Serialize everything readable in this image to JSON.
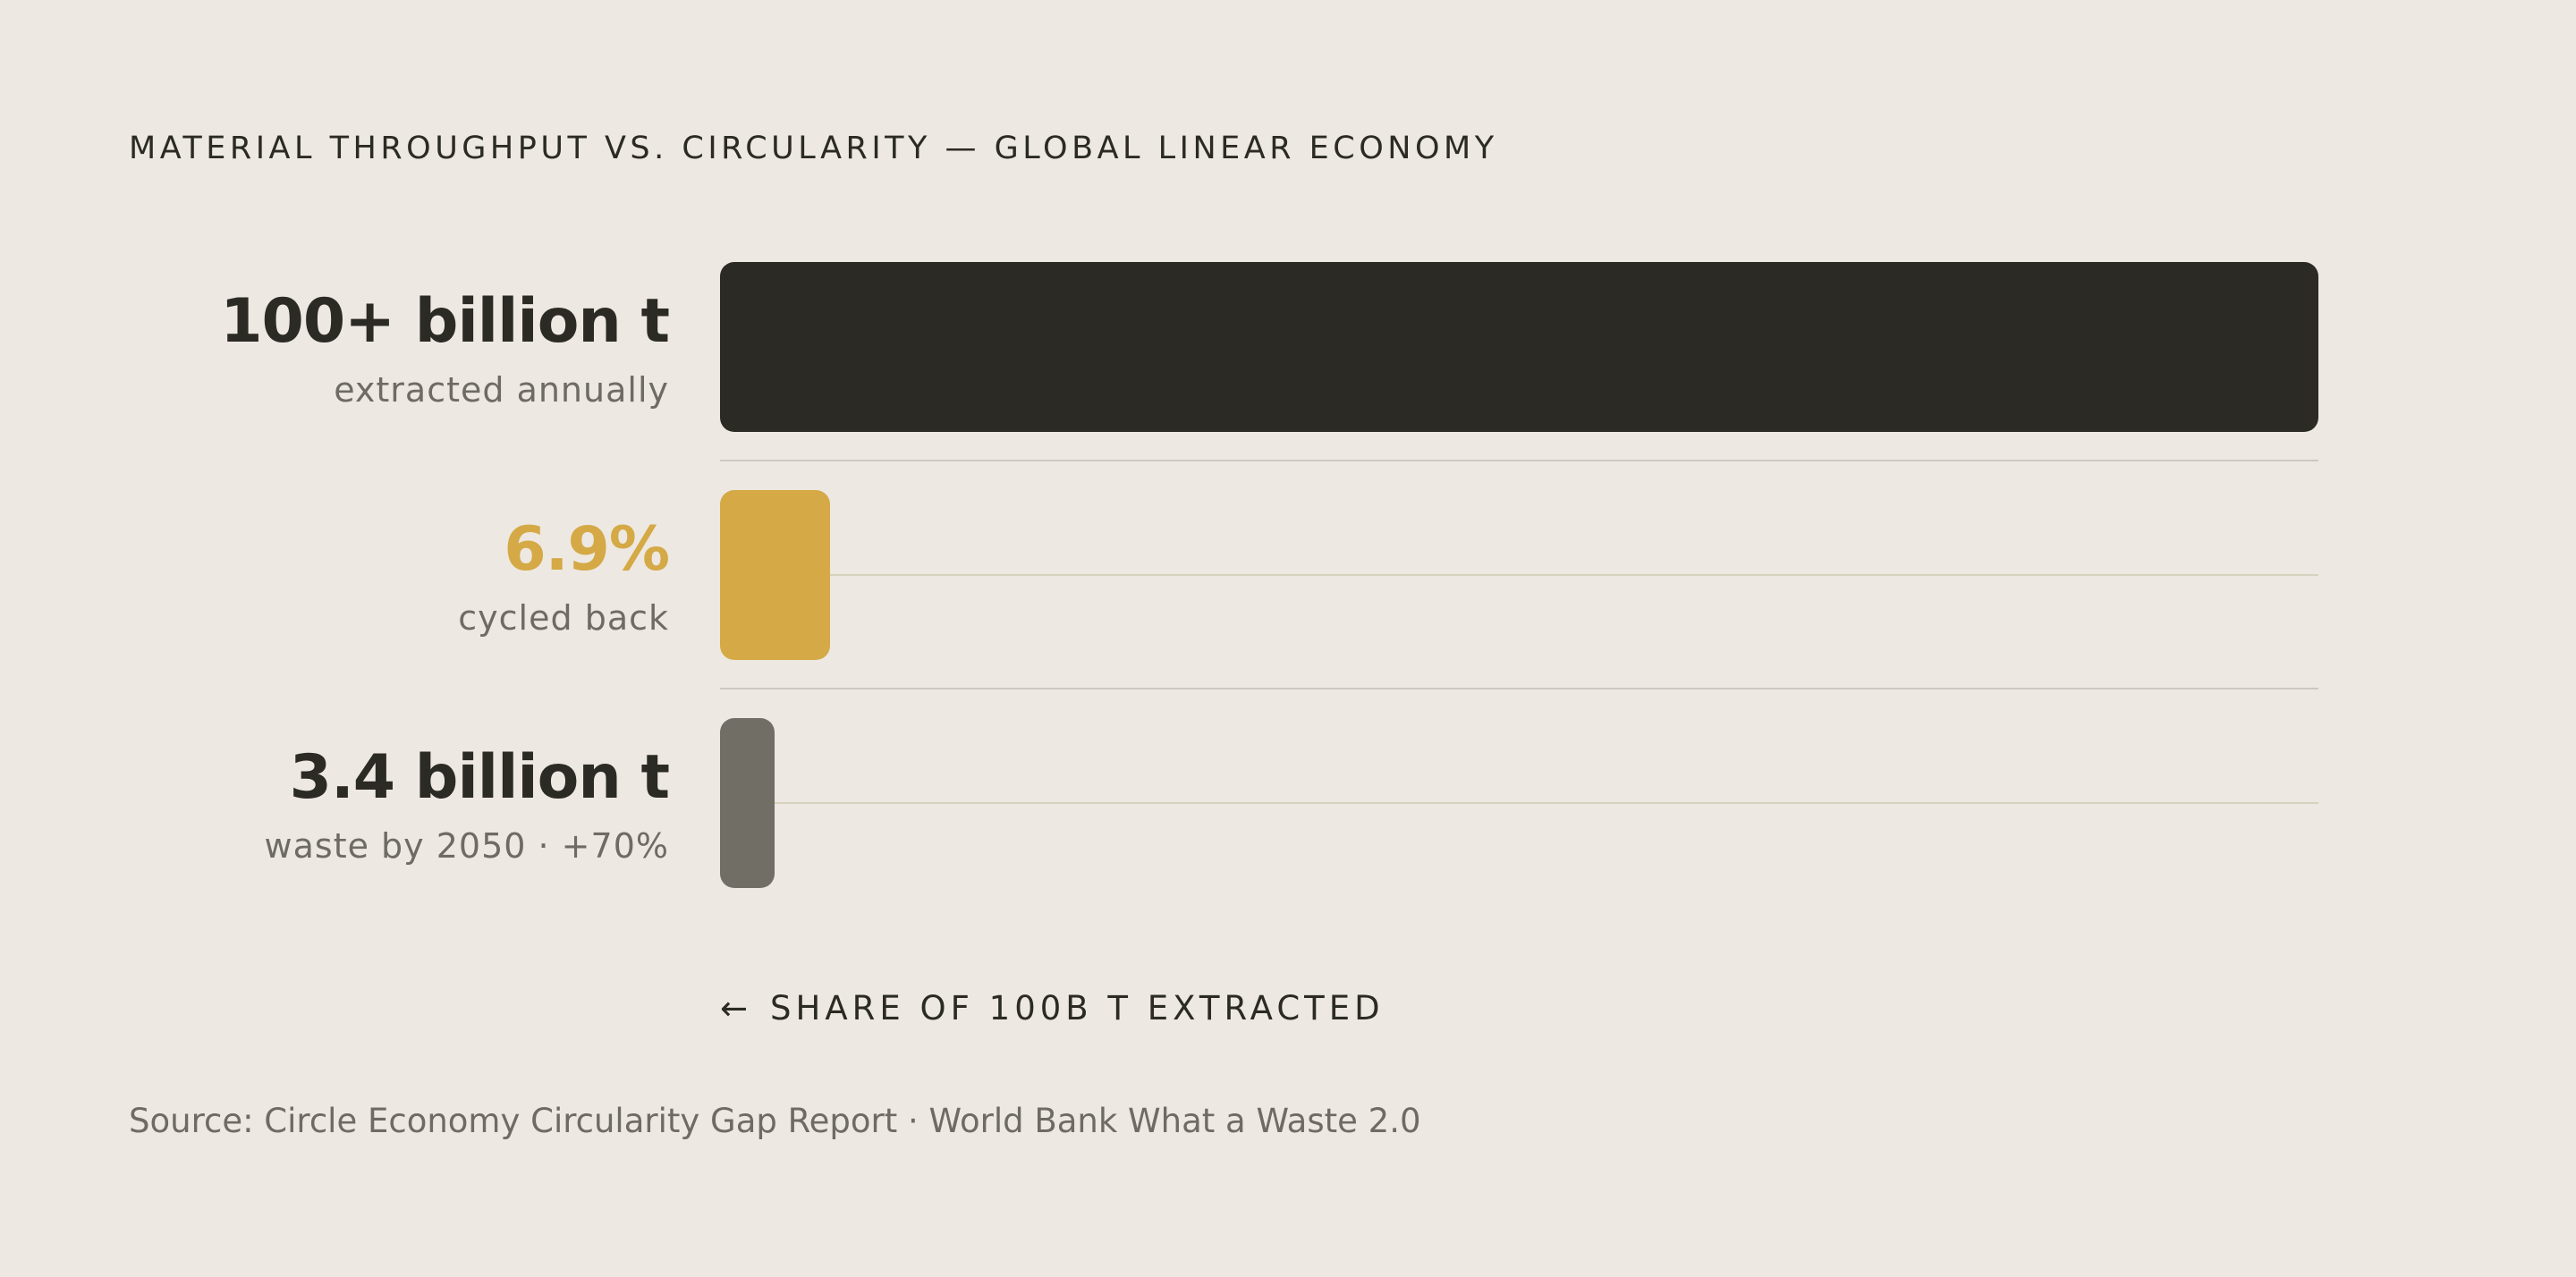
{
  "title": "MATERIAL THROUGHPUT VS. CIRCULARITY — GLOBAL LINEAR ECONOMY",
  "axis_note": {
    "arrow": "←",
    "label": "SHARE OF 100B T EXTRACTED"
  },
  "source": "Source: Circle Economy Circularity Gap Report · World Bank What a Waste 2.0",
  "colors": {
    "background": "#ede8e1",
    "extracted": "#2b2a25",
    "cycled": "#d4a946",
    "waste": "#716e65"
  },
  "chart_data": {
    "type": "bar",
    "orientation": "horizontal",
    "max_value": 100,
    "rows": [
      {
        "value_label": "100+ billion t",
        "sub_label": "extracted annually",
        "share_percent": 100,
        "color": "#2b2a25",
        "value_color": "#2b2a25"
      },
      {
        "value_label": "6.9%",
        "sub_label": "cycled back",
        "share_percent": 6.9,
        "color": "#d4a946",
        "value_color": "#d4a946"
      },
      {
        "value_label": "3.4 billion t",
        "sub_label": "waste by 2050 · +70%",
        "share_percent": 3.4,
        "color": "#716e65",
        "value_color": "#2b2a25"
      }
    ]
  }
}
